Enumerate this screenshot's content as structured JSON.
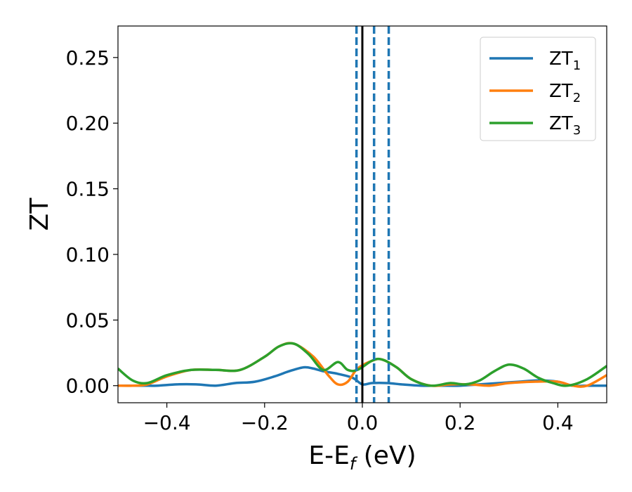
{
  "chart_data": {
    "type": "line",
    "xlabel": {
      "base": "E-E",
      "sub": "f",
      "tail": " (eV)"
    },
    "ylabel": "ZT",
    "xlim": [
      -0.5,
      0.5
    ],
    "ylim": [
      -0.013,
      0.274
    ],
    "x_ticks": [
      -0.4,
      -0.2,
      0.0,
      0.2,
      0.4
    ],
    "x_tick_labels": [
      "−0.4",
      "−0.2",
      "0.0",
      "0.2",
      "0.4"
    ],
    "y_ticks": [
      0.0,
      0.05,
      0.1,
      0.15,
      0.2,
      0.25
    ],
    "y_tick_labels": [
      "0.00",
      "0.05",
      "0.10",
      "0.15",
      "0.20",
      "0.25"
    ],
    "grid": false,
    "legend_position": "top-right",
    "vertical_lines": [
      {
        "x": 0.0,
        "style": "solid",
        "color": "#000000"
      },
      {
        "x": -0.012,
        "style": "dashed",
        "color": "#1f77b4"
      },
      {
        "x": 0.024,
        "style": "dashed",
        "color": "#1f77b4"
      },
      {
        "x": 0.054,
        "style": "dashed",
        "color": "#1f77b4"
      }
    ],
    "series": [
      {
        "name": "ZT",
        "name_sub": "1",
        "color": "#1f77b4",
        "x": [
          -0.5,
          -0.45,
          -0.42,
          -0.38,
          -0.34,
          -0.3,
          -0.26,
          -0.22,
          -0.18,
          -0.15,
          -0.12,
          -0.1,
          -0.08,
          -0.05,
          -0.02,
          0.0,
          0.02,
          0.05,
          0.08,
          0.12,
          0.16,
          0.2,
          0.24,
          0.28,
          0.32,
          0.36,
          0.4,
          0.43,
          0.46,
          0.5
        ],
        "y": [
          0.0,
          0.0,
          0.0,
          0.001,
          0.001,
          0.0,
          0.002,
          0.003,
          0.007,
          0.011,
          0.014,
          0.013,
          0.011,
          0.009,
          0.006,
          0.001,
          0.002,
          0.002,
          0.001,
          0.0,
          0.0,
          0.0,
          0.001,
          0.002,
          0.003,
          0.004,
          0.003,
          0.0,
          0.0,
          0.0
        ]
      },
      {
        "name": "ZT",
        "name_sub": "2",
        "color": "#ff7f0e",
        "x": [
          -0.5,
          -0.47,
          -0.44,
          -0.4,
          -0.35,
          -0.3,
          -0.25,
          -0.2,
          -0.17,
          -0.14,
          -0.1,
          -0.07,
          -0.05,
          -0.03,
          -0.01,
          0.02,
          0.04,
          0.07,
          0.1,
          0.14,
          0.18,
          0.22,
          0.26,
          0.3,
          0.35,
          0.4,
          0.43,
          0.46,
          0.5
        ],
        "y": [
          0.0,
          0.0,
          0.001,
          0.007,
          0.012,
          0.012,
          0.012,
          0.022,
          0.03,
          0.032,
          0.022,
          0.008,
          0.001,
          0.003,
          0.013,
          0.019,
          0.02,
          0.014,
          0.005,
          0.0,
          0.001,
          0.001,
          0.0,
          0.002,
          0.003,
          0.003,
          0.0,
          0.0,
          0.008
        ]
      },
      {
        "name": "ZT",
        "name_sub": "3",
        "color": "#2ca02c",
        "x": [
          -0.5,
          -0.47,
          -0.44,
          -0.4,
          -0.35,
          -0.3,
          -0.25,
          -0.2,
          -0.17,
          -0.14,
          -0.11,
          -0.08,
          -0.05,
          -0.03,
          -0.01,
          0.02,
          0.04,
          0.07,
          0.1,
          0.14,
          0.18,
          0.21,
          0.24,
          0.27,
          0.3,
          0.33,
          0.36,
          0.39,
          0.42,
          0.46,
          0.5
        ],
        "y": [
          0.013,
          0.004,
          0.002,
          0.008,
          0.012,
          0.012,
          0.012,
          0.022,
          0.03,
          0.032,
          0.024,
          0.012,
          0.018,
          0.012,
          0.012,
          0.019,
          0.02,
          0.014,
          0.005,
          0.0,
          0.002,
          0.001,
          0.004,
          0.011,
          0.016,
          0.013,
          0.006,
          0.002,
          0.0,
          0.005,
          0.015
        ]
      }
    ]
  }
}
